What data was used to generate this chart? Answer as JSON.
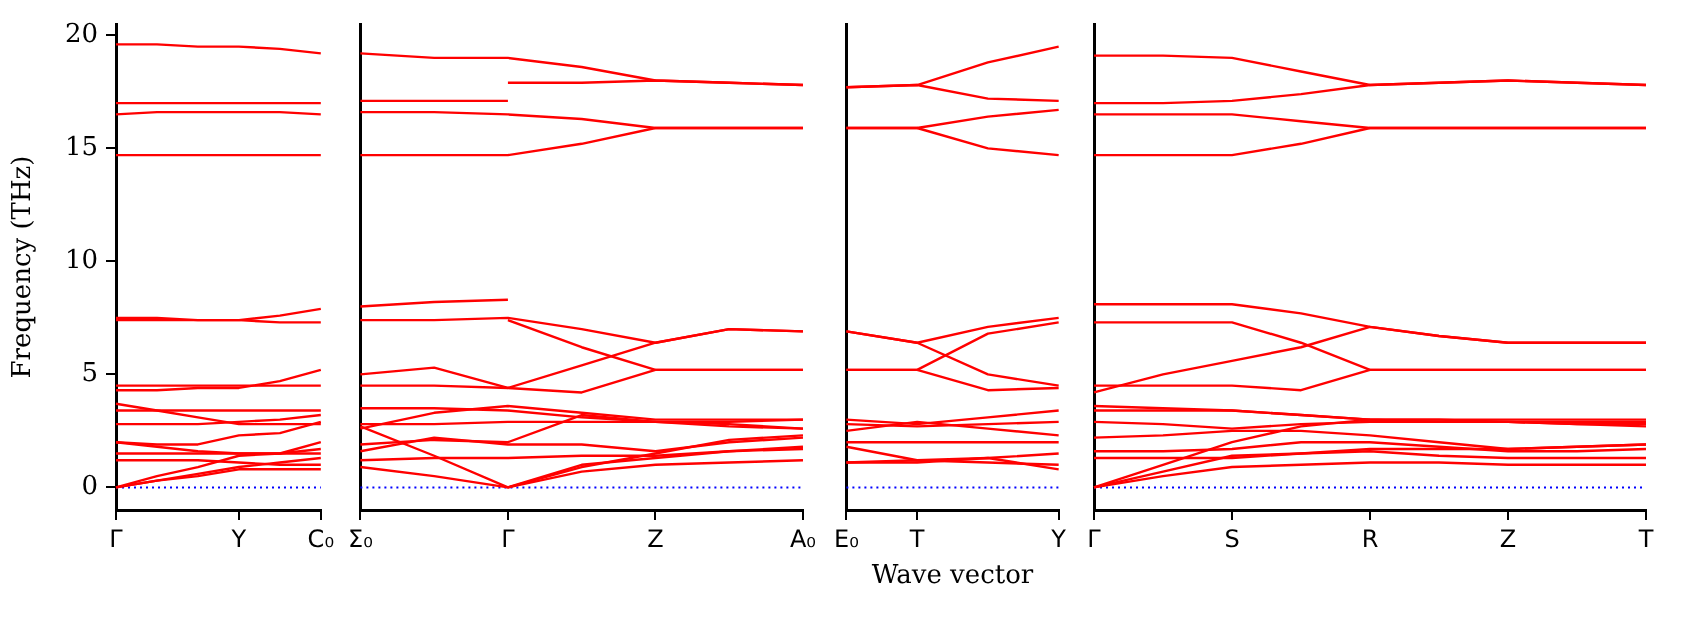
{
  "chart_data": [
    {
      "type": "line",
      "ylabel": "Frequency (THz)",
      "color": "#ff0000",
      "marker": "none",
      "grid": false,
      "legend": false,
      "ylim": [
        -1,
        20.5
      ],
      "yticks": [
        0,
        5,
        10,
        15,
        20
      ],
      "categories": [
        "Γ",
        null,
        null,
        "Y",
        null,
        "C₀"
      ],
      "ref_lines": [
        {
          "axis": "y",
          "value": 0,
          "color": "#0000ff",
          "line_style": "dotted"
        }
      ],
      "series": [
        {
          "values": [
            19.6,
            19.6,
            19.5,
            19.5,
            19.4,
            19.2
          ]
        },
        {
          "values": [
            17.0,
            17.0,
            17.0,
            17.0,
            17.0,
            17.0
          ]
        },
        {
          "values": [
            16.5,
            16.6,
            16.6,
            16.6,
            16.6,
            16.5
          ]
        },
        {
          "values": [
            14.7,
            14.7,
            14.7,
            14.7,
            14.7,
            14.7
          ]
        },
        {
          "values": [
            7.5,
            7.5,
            7.4,
            7.4,
            7.6,
            7.9
          ]
        },
        {
          "values": [
            7.4,
            7.4,
            7.4,
            7.4,
            7.3,
            7.3
          ]
        },
        {
          "values": [
            4.5,
            4.5,
            4.5,
            4.5,
            4.5,
            4.5
          ]
        },
        {
          "values": [
            4.3,
            4.3,
            4.4,
            4.4,
            4.7,
            5.2
          ]
        },
        {
          "values": [
            3.7,
            3.4,
            3.1,
            2.8,
            2.8,
            2.8
          ]
        },
        {
          "values": [
            3.4,
            3.4,
            3.4,
            3.4,
            3.4,
            3.4
          ]
        },
        {
          "values": [
            2.8,
            2.8,
            2.8,
            2.9,
            3.0,
            3.2
          ]
        },
        {
          "values": [
            2.0,
            1.9,
            1.9,
            2.3,
            2.4,
            2.9
          ]
        },
        {
          "values": [
            2.0,
            1.8,
            1.6,
            1.5,
            1.5,
            2.0
          ]
        },
        {
          "values": [
            1.5,
            1.5,
            1.5,
            1.5,
            1.5,
            1.5
          ]
        },
        {
          "values": [
            1.2,
            1.2,
            1.2,
            1.1,
            1.0,
            1.0
          ]
        },
        {
          "values": [
            0,
            0.5,
            0.9,
            1.4,
            1.5,
            1.7
          ]
        },
        {
          "values": [
            0,
            0.3,
            0.6,
            0.9,
            1.1,
            1.3
          ]
        },
        {
          "values": [
            0,
            0.3,
            0.5,
            0.8,
            0.8,
            0.8
          ]
        }
      ]
    },
    {
      "type": "line",
      "color": "#ff0000",
      "marker": "none",
      "grid": false,
      "legend": false,
      "tick_labels": "x",
      "ylim": [
        -1,
        20.5
      ],
      "yticks": [
        0,
        5,
        10,
        15,
        20
      ],
      "categories": [
        "Σ₀",
        null,
        "Γ",
        null,
        "Z",
        null,
        "A₀"
      ],
      "ref_lines": [
        {
          "axis": "y",
          "value": 0,
          "color": "#0000ff",
          "line_style": "dotted"
        }
      ],
      "series": [
        {
          "values": [
            19.2,
            19.0,
            19.0,
            18.6,
            18.0,
            17.9,
            17.8
          ]
        },
        {
          "values": [
            17.1,
            17.1,
            17.1,
            null,
            null,
            null,
            null
          ]
        },
        {
          "values": [
            null,
            null,
            17.9,
            17.9,
            18.0,
            17.9,
            17.8
          ]
        },
        {
          "values": [
            16.6,
            16.6,
            16.5,
            16.3,
            15.9,
            15.9,
            15.9
          ]
        },
        {
          "values": [
            14.7,
            14.7,
            14.7,
            15.2,
            15.9,
            15.9,
            15.9
          ]
        },
        {
          "values": [
            8.0,
            8.2,
            8.3,
            null,
            null,
            null,
            null
          ]
        },
        {
          "values": [
            7.4,
            7.4,
            7.5,
            7.0,
            6.4,
            7.0,
            6.9
          ]
        },
        {
          "values": [
            null,
            null,
            7.4,
            6.2,
            5.2,
            5.2,
            5.2
          ]
        },
        {
          "values": [
            5.0,
            5.3,
            4.4,
            5.4,
            6.4,
            7.0,
            6.9
          ]
        },
        {
          "values": [
            4.5,
            4.5,
            4.4,
            4.2,
            5.2,
            5.2,
            5.2
          ]
        },
        {
          "values": [
            2.6,
            3.3,
            3.6,
            3.3,
            3.0,
            3.0,
            3.0
          ]
        },
        {
          "values": [
            3.5,
            3.5,
            3.4,
            3.1,
            2.9,
            2.9,
            3.0
          ]
        },
        {
          "values": [
            2.8,
            2.8,
            2.9,
            2.9,
            2.9,
            2.8,
            2.6
          ]
        },
        {
          "values": [
            2.7,
            1.4,
            0,
            0.7,
            1.0,
            1.1,
            1.2
          ]
        },
        {
          "values": [
            1.9,
            2.1,
            2.0,
            3.2,
            2.9,
            2.7,
            2.6
          ]
        },
        {
          "values": [
            1.6,
            2.2,
            1.9,
            1.9,
            1.6,
            2.0,
            2.2
          ]
        },
        {
          "values": [
            1.2,
            1.3,
            1.3,
            1.4,
            1.4,
            1.6,
            1.8
          ]
        },
        {
          "values": [
            0.9,
            0.5,
            0,
            0.9,
            1.5,
            2.1,
            2.3
          ]
        },
        {
          "values": [
            null,
            null,
            0,
            1.0,
            1.3,
            1.6,
            1.7
          ]
        }
      ]
    },
    {
      "type": "line",
      "xlabel": "Wave vector",
      "color": "#ff0000",
      "marker": "none",
      "grid": false,
      "legend": false,
      "tick_labels": "x",
      "ylim": [
        -1,
        20.5
      ],
      "yticks": [
        0,
        5,
        10,
        15,
        20
      ],
      "categories": [
        "E₀",
        "T",
        null,
        "Y"
      ],
      "ref_lines": [
        {
          "axis": "y",
          "value": 0,
          "color": "#0000ff",
          "line_style": "dotted"
        }
      ],
      "series": [
        {
          "values": [
            17.7,
            17.8,
            18.8,
            19.5
          ]
        },
        {
          "values": [
            17.7,
            17.8,
            17.2,
            17.1
          ]
        },
        {
          "values": [
            15.9,
            15.9,
            16.4,
            16.7
          ]
        },
        {
          "values": [
            15.9,
            15.9,
            15.0,
            14.7
          ]
        },
        {
          "values": [
            6.9,
            6.4,
            7.1,
            7.5
          ]
        },
        {
          "values": [
            6.9,
            6.4,
            5.0,
            4.5
          ]
        },
        {
          "values": [
            5.2,
            5.2,
            6.8,
            7.3
          ]
        },
        {
          "values": [
            5.2,
            5.2,
            4.3,
            4.4
          ]
        },
        {
          "values": [
            3.0,
            2.8,
            3.1,
            3.4
          ]
        },
        {
          "values": [
            2.8,
            2.7,
            2.8,
            2.9
          ]
        },
        {
          "values": [
            2.5,
            2.9,
            2.6,
            2.3
          ]
        },
        {
          "values": [
            2.0,
            2.0,
            2.0,
            2.0
          ]
        },
        {
          "values": [
            1.8,
            1.2,
            1.3,
            0.8
          ]
        },
        {
          "values": [
            1.1,
            1.1,
            1.3,
            1.5
          ]
        },
        {
          "values": [
            1.1,
            1.2,
            1.1,
            1.0
          ]
        }
      ]
    },
    {
      "type": "line",
      "color": "#ff0000",
      "marker": "none",
      "grid": false,
      "legend": false,
      "tick_labels": "x",
      "ylim": [
        -1,
        20.5
      ],
      "yticks": [
        0,
        5,
        10,
        15,
        20
      ],
      "categories": [
        "Γ",
        null,
        "S",
        null,
        "R",
        null,
        "Z",
        null,
        "T"
      ],
      "ref_lines": [
        {
          "axis": "y",
          "value": 0,
          "color": "#0000ff",
          "line_style": "dotted"
        }
      ],
      "series": [
        {
          "values": [
            19.1,
            19.1,
            19.0,
            18.4,
            17.8,
            17.9,
            18.0,
            17.9,
            17.8
          ]
        },
        {
          "values": [
            17.0,
            17.0,
            17.1,
            17.4,
            17.8,
            17.9,
            18.0,
            17.9,
            17.8
          ]
        },
        {
          "values": [
            16.5,
            16.5,
            16.5,
            16.2,
            15.9,
            15.9,
            15.9,
            15.9,
            15.9
          ]
        },
        {
          "values": [
            14.7,
            14.7,
            14.7,
            15.2,
            15.9,
            15.9,
            15.9,
            15.9,
            15.9
          ]
        },
        {
          "values": [
            8.1,
            8.1,
            8.1,
            7.7,
            7.1,
            6.7,
            6.4,
            6.4,
            6.4
          ]
        },
        {
          "values": [
            7.3,
            7.3,
            7.3,
            6.4,
            5.2,
            5.2,
            5.2,
            5.2,
            5.2
          ]
        },
        {
          "values": [
            4.2,
            5.0,
            5.6,
            6.2,
            7.1,
            6.7,
            6.4,
            6.4,
            6.4
          ]
        },
        {
          "values": [
            4.5,
            4.5,
            4.5,
            4.3,
            5.2,
            5.2,
            5.2,
            5.2,
            5.2
          ]
        },
        {
          "values": [
            3.6,
            3.5,
            3.4,
            3.2,
            3.0,
            2.9,
            2.9,
            2.8,
            2.8
          ]
        },
        {
          "values": [
            3.4,
            3.4,
            3.4,
            3.2,
            3.0,
            3.0,
            3.0,
            3.0,
            3.0
          ]
        },
        {
          "values": [
            2.9,
            2.8,
            2.6,
            2.8,
            2.9,
            2.9,
            2.9,
            2.8,
            2.7
          ]
        },
        {
          "values": [
            2.2,
            2.3,
            2.5,
            2.5,
            2.3,
            2.0,
            1.7,
            1.8,
            1.9
          ]
        },
        {
          "values": [
            1.6,
            1.6,
            1.7,
            2.0,
            2.0,
            1.8,
            1.6,
            1.6,
            1.7
          ]
        },
        {
          "values": [
            1.3,
            1.3,
            1.3,
            1.5,
            1.7,
            1.7,
            1.7,
            1.8,
            1.9
          ]
        },
        {
          "values": [
            0,
            1.0,
            2.0,
            2.7,
            3.0,
            3.0,
            2.9,
            2.9,
            2.9
          ]
        },
        {
          "values": [
            0,
            0.7,
            1.4,
            1.5,
            1.6,
            1.4,
            1.3,
            1.3,
            1.3
          ]
        },
        {
          "values": [
            0,
            0.5,
            0.9,
            1.0,
            1.1,
            1.1,
            1.0,
            1.0,
            1.0
          ]
        }
      ]
    }
  ]
}
